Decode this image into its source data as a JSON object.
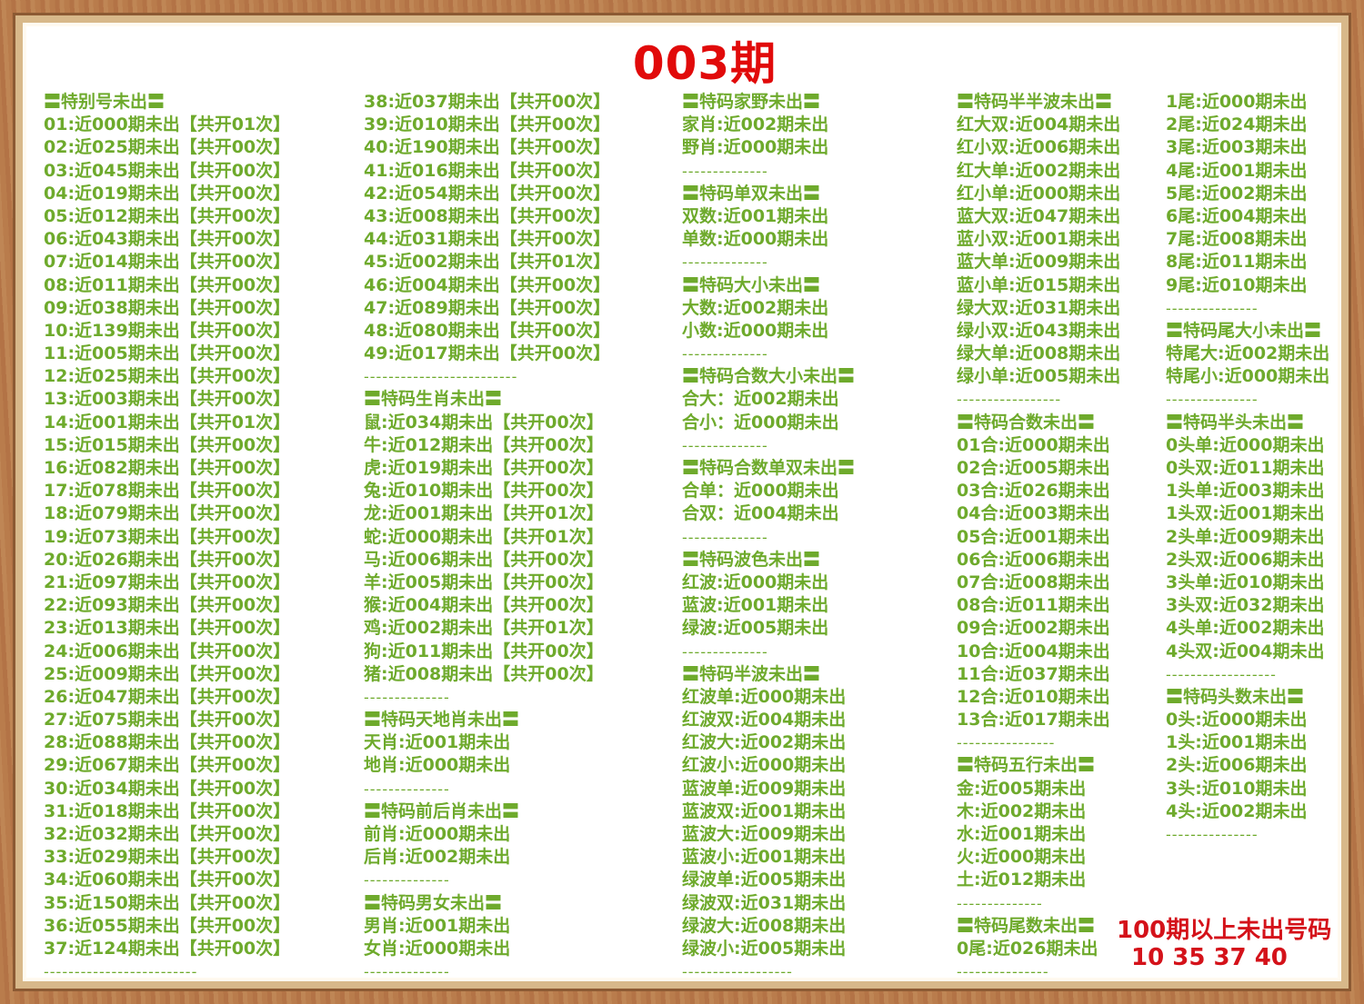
{
  "title": "003期",
  "colors": {
    "text": "#6eaa2c",
    "title": "#e10a0a",
    "highlight": "#d4121a"
  },
  "columns": [
    [
      "〓特别号未出〓",
      "01:近000期未出【共开01次】",
      "02:近025期未出【共开00次】",
      "03:近045期未出【共开00次】",
      "04:近019期未出【共开00次】",
      "05:近012期未出【共开00次】",
      "06:近043期未出【共开00次】",
      "07:近014期未出【共开00次】",
      "08:近011期未出【共开00次】",
      "09:近038期未出【共开00次】",
      "10:近139期未出【共开00次】",
      "11:近005期未出【共开00次】",
      "12:近025期未出【共开00次】",
      "13:近003期未出【共开00次】",
      "14:近001期未出【共开01次】",
      "15:近015期未出【共开00次】",
      "16:近082期未出【共开00次】",
      "17:近078期未出【共开00次】",
      "18:近079期未出【共开00次】",
      "19:近073期未出【共开00次】",
      "20:近026期未出【共开00次】",
      "21:近097期未出【共开00次】",
      "22:近093期未出【共开00次】",
      "23:近013期未出【共开00次】",
      "24:近006期未出【共开00次】",
      "25:近009期未出【共开00次】",
      "26:近047期未出【共开00次】",
      "27:近075期未出【共开00次】",
      "28:近088期未出【共开00次】",
      "29:近067期未出【共开00次】",
      "30:近034期未出【共开00次】",
      "31:近018期未出【共开00次】",
      "32:近032期未出【共开00次】",
      "33:近029期未出【共开00次】",
      "34:近060期未出【共开00次】",
      "35:近150期未出【共开00次】",
      "36:近055期未出【共开00次】",
      "37:近124期未出【共开00次】",
      "-------------------------"
    ],
    [
      "38:近037期未出【共开00次】",
      "39:近010期未出【共开00次】",
      "40:近190期未出【共开00次】",
      "41:近016期未出【共开00次】",
      "42:近054期未出【共开00次】",
      "43:近008期未出【共开00次】",
      "44:近031期未出【共开00次】",
      "45:近002期未出【共开01次】",
      "46:近004期未出【共开00次】",
      "47:近089期未出【共开00次】",
      "48:近080期未出【共开00次】",
      "49:近017期未出【共开00次】",
      "-------------------------",
      "〓特码生肖未出〓",
      "鼠:近034期未出【共开00次】",
      "牛:近012期未出【共开00次】",
      "虎:近019期未出【共开00次】",
      "兔:近010期未出【共开00次】",
      "龙:近001期未出【共开01次】",
      "蛇:近000期未出【共开01次】",
      "马:近006期未出【共开00次】",
      "羊:近005期未出【共开00次】",
      "猴:近004期未出【共开00次】",
      "鸡:近002期未出【共开01次】",
      "狗:近011期未出【共开00次】",
      "猪:近008期未出【共开00次】",
      "--------------",
      "〓特码天地肖未出〓",
      "天肖:近001期未出",
      "地肖:近000期未出",
      "--------------",
      "〓特码前后肖未出〓",
      "前肖:近000期未出",
      "后肖:近002期未出",
      "--------------",
      "〓特码男女未出〓",
      "男肖:近001期未出",
      "女肖:近000期未出",
      "--------------"
    ],
    [
      "〓特码家野未出〓",
      "家肖:近002期未出",
      "野肖:近000期未出",
      "--------------",
      "〓特码单双未出〓",
      "双数:近001期未出",
      "单数:近000期未出",
      "--------------",
      "〓特码大小未出〓",
      "大数:近002期未出",
      "小数:近000期未出",
      "--------------",
      "〓特码合数大小未出〓",
      "合大：近002期未出",
      "合小：近000期未出",
      "--------------",
      "〓特码合数单双未出〓",
      "合单：近000期未出",
      "合双：近004期未出",
      "--------------",
      "〓特码波色未出〓",
      "红波:近000期未出",
      "蓝波:近001期未出",
      "绿波:近005期未出",
      "--------------",
      "〓特码半波未出〓",
      "红波单:近000期未出",
      "红波双:近004期未出",
      "红波大:近002期未出",
      "红波小:近000期未出",
      "蓝波单:近009期未出",
      "蓝波双:近001期未出",
      "蓝波大:近009期未出",
      "蓝波小:近001期未出",
      "绿波单:近005期未出",
      "绿波双:近031期未出",
      "绿波大:近008期未出",
      "绿波小:近005期未出",
      "------------------"
    ],
    [
      "〓特码半半波未出〓",
      "红大双:近004期未出",
      "红小双:近006期未出",
      "红大单:近002期未出",
      "红小单:近000期未出",
      "蓝大双:近047期未出",
      "蓝小双:近001期未出",
      "蓝大单:近009期未出",
      "蓝小单:近015期未出",
      "绿大双:近031期未出",
      "绿小双:近043期未出",
      "绿大单:近008期未出",
      "绿小单:近005期未出",
      "-----------------",
      "〓特码合数未出〓",
      "01合:近000期未出",
      "02合:近005期未出",
      "03合:近026期未出",
      "04合:近003期未出",
      "05合:近001期未出",
      "06合:近006期未出",
      "07合:近008期未出",
      "08合:近011期未出",
      "09合:近002期未出",
      "10合:近004期未出",
      "11合:近037期未出",
      "12合:近010期未出",
      "13合:近017期未出",
      "----------------",
      "〓特码五行未出〓",
      "金:近005期未出",
      "木:近002期未出",
      "水:近001期未出",
      "火:近000期未出",
      "土:近012期未出",
      "--------------",
      "〓特码尾数未出〓",
      "0尾:近026期未出",
      "---------------"
    ],
    [
      "1尾:近000期未出",
      "2尾:近024期未出",
      "3尾:近003期未出",
      "4尾:近001期未出",
      "5尾:近002期未出",
      "6尾:近004期未出",
      "7尾:近008期未出",
      "8尾:近011期未出",
      "9尾:近010期未出",
      "---------------",
      "〓特码尾大小未出〓",
      "特尾大:近002期未出",
      "特尾小:近000期未出",
      "---------------",
      "〓特码半头未出〓",
      "0头单:近000期未出",
      "0头双:近011期未出",
      "1头单:近003期未出",
      "1头双:近001期未出",
      "2头单:近009期未出",
      "2头双:近006期未出",
      "3头单:近010期未出",
      "3头双:近032期未出",
      "4头单:近002期未出",
      "4头双:近004期未出",
      "------------------",
      "〓特码头数未出〓",
      "0头:近000期未出",
      "1头:近001期未出",
      "2头:近006期未出",
      "3头:近010期未出",
      "4头:近002期未出",
      "---------------"
    ]
  ],
  "highlight": {
    "label": "100期以上未出号码",
    "numbers": "10 35 37 40"
  }
}
